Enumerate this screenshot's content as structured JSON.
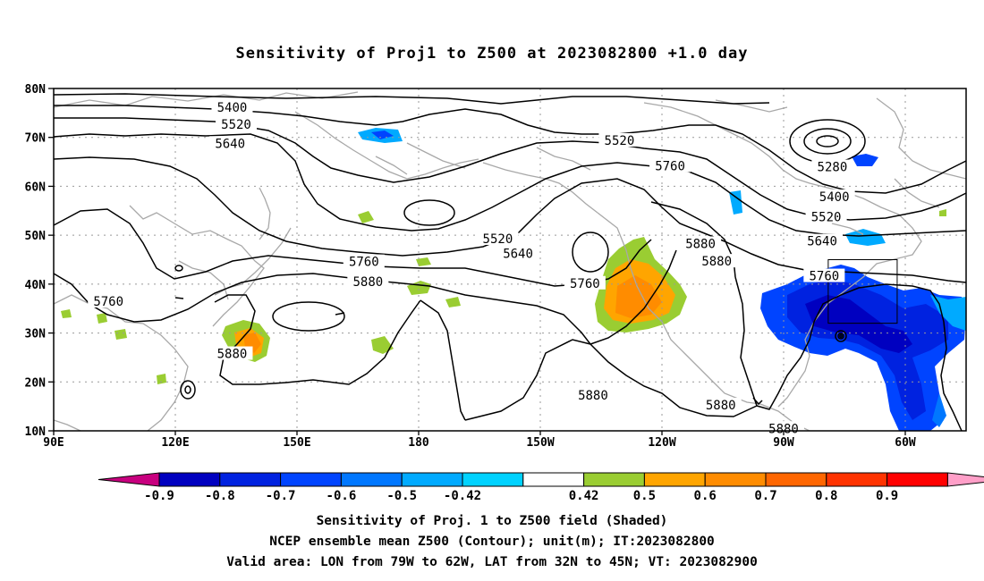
{
  "title": "Sensitivity of Proj1 to Z500 at 2023082800 +1.0 day",
  "map": {
    "lat_labels": [
      "80N",
      "70N",
      "60N",
      "50N",
      "40N",
      "30N",
      "20N",
      "10N"
    ],
    "lat_values": [
      80,
      70,
      60,
      50,
      40,
      30,
      20,
      10
    ],
    "lon_labels": [
      "90E",
      "120E",
      "150E",
      "180",
      "150W",
      "120W",
      "90W",
      "60W"
    ],
    "lon_values": [
      90,
      120,
      150,
      180,
      210,
      240,
      270,
      300
    ],
    "lon_range": [
      90,
      315
    ],
    "lat_range": [
      10,
      80
    ],
    "valid_box": {
      "lon_west": 281,
      "lon_east": 298,
      "lat_south": 32,
      "lat_north": 45
    },
    "contour_labels": [
      {
        "text": "5400",
        "lon": 134,
        "lat": 76.2
      },
      {
        "text": "5520",
        "lon": 135,
        "lat": 72.7
      },
      {
        "text": "5640",
        "lon": 133.5,
        "lat": 68.8
      },
      {
        "text": "5520",
        "lon": 229.5,
        "lat": 69.4
      },
      {
        "text": "5760",
        "lon": 242,
        "lat": 64.2
      },
      {
        "text": "5280",
        "lon": 282,
        "lat": 64
      },
      {
        "text": "5400",
        "lon": 282.5,
        "lat": 57.9
      },
      {
        "text": "5520",
        "lon": 280.5,
        "lat": 53.8
      },
      {
        "text": "5640",
        "lon": 279.5,
        "lat": 48.8
      },
      {
        "text": "5880",
        "lon": 249.5,
        "lat": 48.3
      },
      {
        "text": "5880",
        "lon": 253.5,
        "lat": 44.7
      },
      {
        "text": "5760",
        "lon": 280,
        "lat": 41.7
      },
      {
        "text": "5520",
        "lon": 199.5,
        "lat": 49.3
      },
      {
        "text": "5640",
        "lon": 204.5,
        "lat": 46.3
      },
      {
        "text": "5760",
        "lon": 166.5,
        "lat": 44.6
      },
      {
        "text": "5880",
        "lon": 167.5,
        "lat": 40.5
      },
      {
        "text": "5760",
        "lon": 221,
        "lat": 40.2
      },
      {
        "text": "5760",
        "lon": 103.5,
        "lat": 36.5
      },
      {
        "text": "5880",
        "lon": 134,
        "lat": 25.8
      },
      {
        "text": "5880",
        "lon": 223,
        "lat": 17.3
      },
      {
        "text": "5880",
        "lon": 254.5,
        "lat": 15.3
      },
      {
        "text": "5880",
        "lon": 270,
        "lat": 10.5
      }
    ]
  },
  "colorbar": {
    "colors": [
      "#c8007f",
      "#0000c0",
      "#0022e0",
      "#0044ff",
      "#0077ff",
      "#00aaff",
      "#00d2ff",
      "#ffffff",
      "#9acd32",
      "#ffa500",
      "#ff8c00",
      "#ff6600",
      "#ff3300",
      "#ff0000",
      "#ff9fc8"
    ],
    "labels": [
      "-0.9",
      "-0.8",
      "-0.7",
      "-0.6",
      "-0.5",
      "-0.42",
      "0.42",
      "0.5",
      "0.6",
      "0.7",
      "0.8",
      "0.9"
    ]
  },
  "captions": [
    "Sensitivity of Proj. 1 to Z500 field (Shaded)",
    "NCEP ensemble mean Z500 (Contour); unit(m); IT:2023082800",
    "Valid area: LON from 79W to 62W, LAT from 32N to 45N; VT: 2023082900"
  ]
}
